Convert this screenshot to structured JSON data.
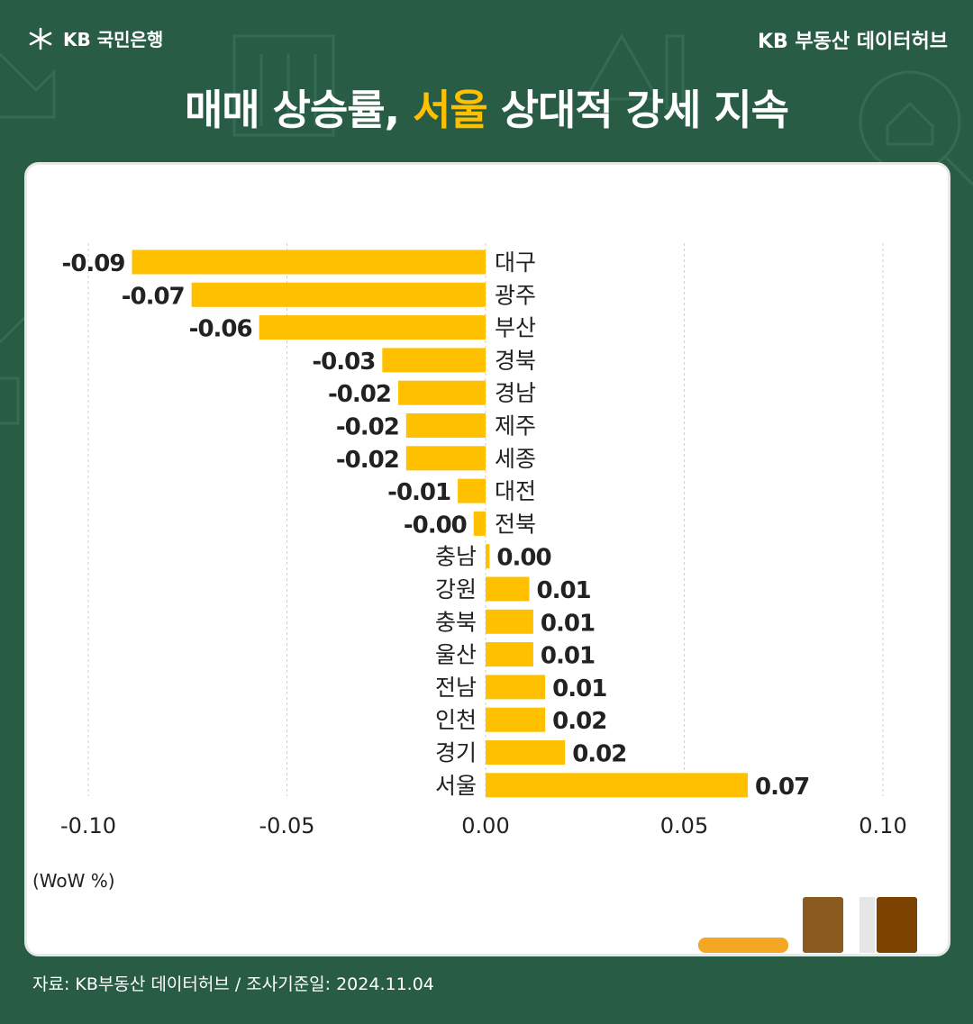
{
  "brand": {
    "logo_text": "KB 국민은행",
    "right_label": "KB 부동산  데이터허브"
  },
  "title": {
    "part1": "매매 상승률,",
    "highlight": "서울",
    "part2": "상대적 강세 지속"
  },
  "unit_label": "(WoW %)",
  "source": "자료: KB부동산 데이터허브 / 조사기준일: 2024.11.04",
  "colors": {
    "background": "#285c44",
    "bar": "#ffc000",
    "highlight": "#ffc000"
  },
  "chart_data": {
    "type": "bar",
    "orientation": "horizontal",
    "categories": [
      "대구",
      "광주",
      "부산",
      "경북",
      "경남",
      "제주",
      "세종",
      "대전",
      "전북",
      "충남",
      "강원",
      "충북",
      "울산",
      "전남",
      "인천",
      "경기",
      "서울"
    ],
    "values": [
      -0.089,
      -0.074,
      -0.057,
      -0.026,
      -0.022,
      -0.02,
      -0.02,
      -0.007,
      -0.003,
      0.001,
      0.011,
      0.012,
      0.012,
      0.015,
      0.015,
      0.02,
      0.066
    ],
    "data_labels": [
      "-0.09",
      "-0.07",
      "-0.06",
      "-0.03",
      "-0.02",
      "-0.02",
      "-0.02",
      "-0.01",
      "-0.00",
      "0.00",
      "0.01",
      "0.01",
      "0.01",
      "0.01",
      "0.02",
      "0.02",
      "0.07"
    ],
    "xlim": [
      -0.1,
      0.1
    ],
    "xticks": [
      "-0.10",
      "-0.05",
      "0.00",
      "0.05",
      "0.10"
    ],
    "xtick_values": [
      -0.1,
      -0.05,
      0.0,
      0.05,
      0.1
    ],
    "grid": true
  }
}
